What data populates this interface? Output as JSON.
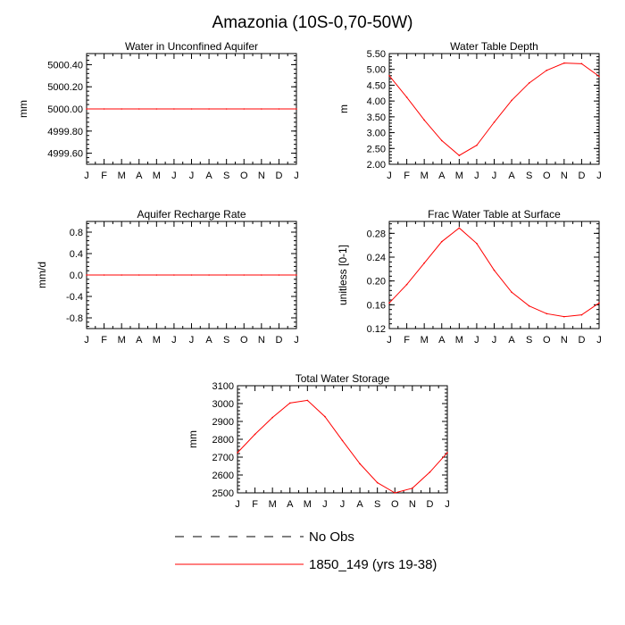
{
  "figure": {
    "title": "Amazonia (10S-0,70-50W)"
  },
  "legend": {
    "placement": "bottom-center",
    "entries": [
      {
        "label": "No Obs",
        "color": "#000000",
        "dash": true
      },
      {
        "label": "1850_149 (yrs 19-38)",
        "color": "#ff0000",
        "dash": false
      }
    ]
  },
  "chart_data": [
    {
      "type": "line",
      "title": "Water in Unconfined Aquifer",
      "ylabel": "mm",
      "x": [
        "J",
        "F",
        "M",
        "A",
        "M",
        "J",
        "J",
        "A",
        "S",
        "O",
        "N",
        "D",
        "J"
      ],
      "ylim": [
        4999.5,
        5000.5
      ],
      "yticks": [
        4999.6,
        4999.8,
        5000.0,
        5000.2,
        5000.4
      ],
      "ytick_labels": [
        "4999.60",
        "4999.80",
        "5000.00",
        "5000.20",
        "5000.40"
      ],
      "series": [
        {
          "color": "#ff0000",
          "values": [
            5000,
            5000,
            5000,
            5000,
            5000,
            5000,
            5000,
            5000,
            5000,
            5000,
            5000,
            5000,
            5000
          ]
        }
      ]
    },
    {
      "type": "line",
      "title": "Water Table Depth",
      "ylabel": "m",
      "x": [
        "J",
        "F",
        "M",
        "A",
        "M",
        "J",
        "J",
        "A",
        "S",
        "O",
        "N",
        "D",
        "J"
      ],
      "ylim": [
        2.0,
        5.5
      ],
      "yticks": [
        2.0,
        2.5,
        3.0,
        3.5,
        4.0,
        4.5,
        5.0,
        5.5
      ],
      "ytick_labels": [
        "2.00",
        "2.50",
        "3.00",
        "3.50",
        "4.00",
        "4.50",
        "5.00",
        "5.50"
      ],
      "series": [
        {
          "color": "#ff0000",
          "values": [
            4.8,
            4.12,
            3.4,
            2.75,
            2.28,
            2.6,
            3.33,
            4.02,
            4.57,
            4.97,
            5.2,
            5.18,
            4.78
          ]
        }
      ]
    },
    {
      "type": "line",
      "title": "Aquifer Recharge Rate",
      "ylabel": "mm/d",
      "x": [
        "J",
        "F",
        "M",
        "A",
        "M",
        "J",
        "J",
        "A",
        "S",
        "O",
        "N",
        "D",
        "J"
      ],
      "ylim": [
        -1.0,
        1.0
      ],
      "yticks": [
        -0.8,
        -0.4,
        0.0,
        0.4,
        0.8
      ],
      "ytick_labels": [
        "-0.8",
        "-0.4",
        "0.0",
        "0.4",
        "0.8"
      ],
      "series": [
        {
          "color": "#ff0000",
          "values": [
            0,
            0,
            0,
            0,
            0,
            0,
            0,
            0,
            0,
            0,
            0,
            0,
            0
          ]
        }
      ]
    },
    {
      "type": "line",
      "title": "Frac Water Table at Surface",
      "ylabel": "unitless [0-1]",
      "x": [
        "J",
        "F",
        "M",
        "A",
        "M",
        "J",
        "J",
        "A",
        "S",
        "O",
        "N",
        "D",
        "J"
      ],
      "ylim": [
        0.12,
        0.3
      ],
      "yticks": [
        0.12,
        0.16,
        0.2,
        0.24,
        0.28
      ],
      "ytick_labels": [
        "0.12",
        "0.16",
        "0.20",
        "0.24",
        "0.28"
      ],
      "series": [
        {
          "color": "#ff0000",
          "values": [
            0.163,
            0.194,
            0.23,
            0.266,
            0.289,
            0.263,
            0.218,
            0.181,
            0.158,
            0.145,
            0.14,
            0.143,
            0.163
          ]
        }
      ]
    },
    {
      "type": "line",
      "title": "Total Water Storage",
      "ylabel": "mm",
      "x": [
        "J",
        "F",
        "M",
        "A",
        "M",
        "J",
        "J",
        "A",
        "S",
        "O",
        "N",
        "D",
        "J"
      ],
      "ylim": [
        2500,
        3100
      ],
      "yticks": [
        2500,
        2600,
        2700,
        2800,
        2900,
        3000,
        3100
      ],
      "ytick_labels": [
        "2500",
        "2600",
        "2700",
        "2800",
        "2900",
        "3000",
        "3100"
      ],
      "series": [
        {
          "color": "#ff0000",
          "values": [
            2725,
            2828,
            2922,
            3003,
            3018,
            2927,
            2793,
            2663,
            2557,
            2500,
            2526,
            2616,
            2725
          ]
        }
      ]
    }
  ]
}
